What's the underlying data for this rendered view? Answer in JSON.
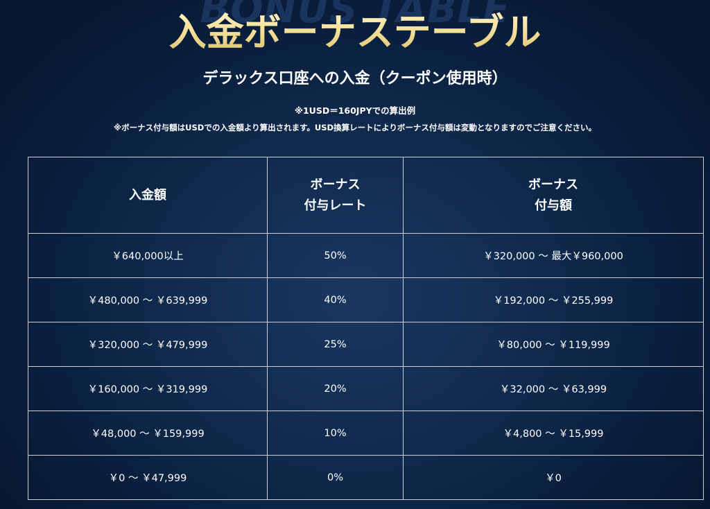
{
  "header": {
    "background_word": "BONUS TABLE",
    "title": "入金ボーナステーブル",
    "subtitle": "デラックス口座への入金（クーポン使用時）",
    "note_rate": "※1USD＝160JPYでの算出例",
    "note_disclaimer": "※ボーナス付与額はUSDでの入金額より算出されます。USD換算レートによりボーナス付与額は変動となりますのでご注意ください。"
  },
  "table": {
    "headers": [
      {
        "lines": [
          "入金額"
        ]
      },
      {
        "lines": [
          "ボーナス",
          "付与レート"
        ]
      },
      {
        "lines": [
          "ボーナス",
          "付与額"
        ]
      }
    ],
    "rows": [
      {
        "deposit": "￥640,000以上",
        "rate": "50%",
        "bonus": "￥320,000 ～ 最大￥960,000"
      },
      {
        "deposit": "￥480,000 ～ ￥639,999",
        "rate": "40%",
        "bonus": "￥192,000 ～ ￥255,999"
      },
      {
        "deposit": "￥320,000 ～ ￥479,999",
        "rate": "25%",
        "bonus": "￥80,000 ～ ￥119,999"
      },
      {
        "deposit": "￥160,000 ～ ￥319,999",
        "rate": "20%",
        "bonus": "￥32,000 ～ ￥63,999"
      },
      {
        "deposit": "￥48,000 ～ ￥159,999",
        "rate": "10%",
        "bonus": "￥4,800 ～ ￥15,999"
      },
      {
        "deposit": "￥0 ～ ￥47,999",
        "rate": "0%",
        "bonus": "￥0"
      }
    ]
  },
  "colors": {
    "background": "#0a1f3d",
    "title_gold": "#f2dc92",
    "border": "#c9d0da",
    "text": "#ffffff"
  }
}
